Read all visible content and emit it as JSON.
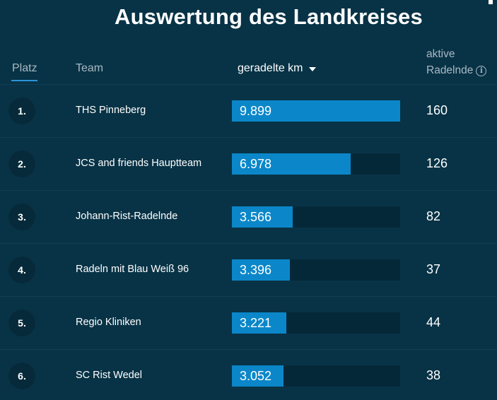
{
  "title": "Auswertung des Landkreises",
  "table": {
    "headers": {
      "platz": "Platz",
      "team": "Team",
      "km": "geradelte km",
      "aktive_line1": "aktive",
      "aktive_line2": "Radelnde",
      "info_glyph": "i"
    },
    "sort": {
      "column": "geradelte km",
      "direction": "descending"
    },
    "rows": [
      {
        "rank": "1.",
        "team": "THS Pinneberg",
        "km": "9.899",
        "km_value": 9899,
        "riders": "160"
      },
      {
        "rank": "2.",
        "team": "JCS and friends Hauptteam",
        "km": "6.978",
        "km_value": 6978,
        "riders": "126"
      },
      {
        "rank": "3.",
        "team": "Johann-Rist-Radelnde",
        "km": "3.566",
        "km_value": 3566,
        "riders": "82"
      },
      {
        "rank": "4.",
        "team": "Radeln mit Blau Weiß 96",
        "km": "3.396",
        "km_value": 3396,
        "riders": "37"
      },
      {
        "rank": "5.",
        "team": "Regio Kliniken",
        "km": "3.221",
        "km_value": 3221,
        "riders": "44"
      },
      {
        "rank": "6.",
        "team": "SC Rist Wedel",
        "km": "3.052",
        "km_value": 3052,
        "riders": "38"
      }
    ]
  },
  "colors": {
    "background": "#083346",
    "bar_fill": "#0b87c9",
    "bar_track": "#052839",
    "rank_circle": "#062a3a",
    "active_tab_underline": "#2a95d8",
    "muted_text": "#aab8c2"
  }
}
